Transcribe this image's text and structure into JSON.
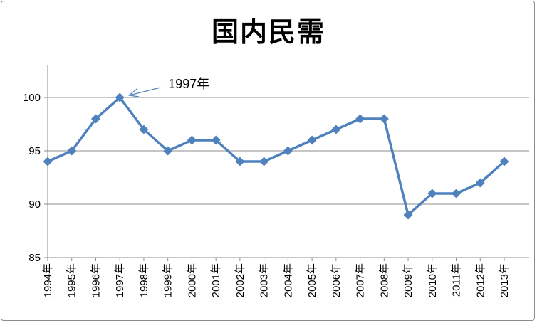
{
  "chart_data": {
    "type": "line",
    "title": "国内民需",
    "xlabel": "",
    "ylabel": "",
    "ylim": [
      85,
      100
    ],
    "yticks": [
      85,
      90,
      95,
      100
    ],
    "grid": true,
    "categories": [
      "1994年",
      "1995年",
      "1996年",
      "1997年",
      "1998年",
      "1999年",
      "2000年",
      "2001年",
      "2002年",
      "2003年",
      "2004年",
      "2005年",
      "2006年",
      "2007年",
      "2008年",
      "2009年",
      "2010年",
      "2011年",
      "2012年",
      "2013年"
    ],
    "series": [
      {
        "color": "#4f81bd",
        "values": [
          94,
          95,
          98,
          100,
          97,
          95,
          96,
          96,
          94,
          94,
          95,
          96,
          97,
          98,
          98,
          89,
          91,
          91,
          92,
          94
        ]
      }
    ],
    "annotations": [
      {
        "text": "1997年",
        "category": "1997年",
        "value": 100
      }
    ]
  }
}
